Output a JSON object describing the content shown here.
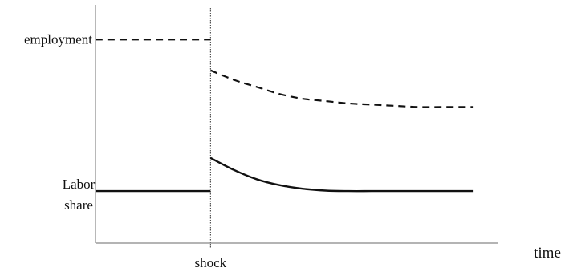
{
  "chart_data": {
    "type": "line",
    "xlabel": "time",
    "ylabel": "",
    "shock_label": "shock",
    "shock_x": 0,
    "xlim": [
      -5,
      11.5
    ],
    "ylim": [
      0,
      10
    ],
    "grid": false,
    "series": [
      {
        "name": "employment",
        "style": "dashed",
        "pre_shock": {
          "x": [
            -5,
            0
          ],
          "y": [
            8.6,
            8.6
          ]
        },
        "post_shock": {
          "x": [
            0,
            1,
            2,
            3,
            4,
            5,
            6,
            7,
            8,
            9,
            10,
            11.4
          ],
          "y": [
            7.3,
            6.9,
            6.6,
            6.3,
            6.1,
            6.0,
            5.9,
            5.85,
            5.8,
            5.75,
            5.75,
            5.75
          ]
        }
      },
      {
        "name": "Labor share",
        "label_lines": [
          "Labor",
          "share"
        ],
        "style": "solid",
        "pre_shock": {
          "x": [
            -5,
            0
          ],
          "y": [
            2.2,
            2.2
          ]
        },
        "post_shock": {
          "x": [
            0,
            1,
            2,
            3,
            4,
            5,
            6,
            7,
            8,
            9,
            10,
            11.4
          ],
          "y": [
            3.6,
            3.1,
            2.7,
            2.45,
            2.3,
            2.22,
            2.2,
            2.2,
            2.2,
            2.2,
            2.2,
            2.2
          ]
        }
      }
    ],
    "colors": {
      "line": "#111111",
      "axis": "#888888",
      "shock_line": "#333333"
    }
  }
}
